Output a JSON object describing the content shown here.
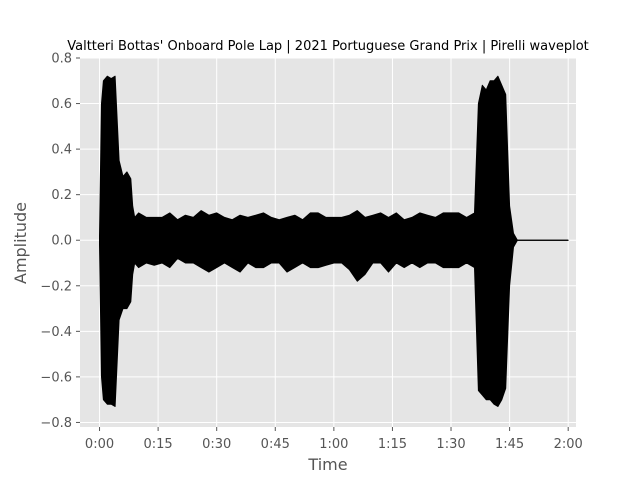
{
  "chart_data": {
    "type": "line",
    "title": "Valtteri Bottas' Onboard Pole Lap | 2021 Portuguese Grand Prix | Pirelli waveplot",
    "xlabel": "Time",
    "ylabel": "Amplitude",
    "xlim": [
      -5,
      122
    ],
    "ylim": [
      -0.82,
      0.8
    ],
    "x_ticks": [
      0,
      15,
      30,
      45,
      60,
      75,
      90,
      105,
      120
    ],
    "x_tick_labels": [
      "0:00",
      "0:15",
      "0:30",
      "0:45",
      "1:00",
      "1:15",
      "1:30",
      "1:45",
      "2:00"
    ],
    "y_ticks": [
      -0.8,
      -0.6,
      -0.4,
      -0.2,
      0.0,
      0.2,
      0.4,
      0.6,
      0.8
    ],
    "y_tick_labels": [
      "−0.8",
      "−0.6",
      "−0.4",
      "−0.2",
      "0.0",
      "0.2",
      "0.4",
      "0.6",
      "0.8"
    ],
    "grid": true,
    "style": "ggplot",
    "colors": {
      "waveform": "#000000",
      "axes_bg": "#e5e5e5",
      "grid": "#ffffff"
    },
    "series": [
      {
        "time_s": [
          0,
          0.5,
          1,
          2,
          3,
          4,
          5,
          6,
          7,
          8,
          8.5,
          9,
          10,
          12,
          14,
          16,
          18,
          20,
          22,
          24,
          26,
          28,
          30,
          32,
          34,
          36,
          38,
          40,
          42,
          44,
          46,
          48,
          50,
          52,
          54,
          56,
          58,
          60,
          62,
          64,
          66,
          68,
          70,
          72,
          74,
          76,
          78,
          80,
          82,
          84,
          86,
          88,
          90,
          92,
          94,
          96,
          97,
          98,
          99,
          100,
          101,
          102,
          103,
          104,
          105,
          106,
          107,
          120
        ],
        "envelope_max": [
          0.02,
          0.6,
          0.7,
          0.72,
          0.71,
          0.72,
          0.35,
          0.28,
          0.3,
          0.27,
          0.15,
          0.1,
          0.12,
          0.1,
          0.1,
          0.1,
          0.12,
          0.09,
          0.11,
          0.1,
          0.13,
          0.11,
          0.12,
          0.1,
          0.09,
          0.11,
          0.1,
          0.11,
          0.12,
          0.1,
          0.09,
          0.1,
          0.11,
          0.09,
          0.12,
          0.12,
          0.1,
          0.1,
          0.1,
          0.11,
          0.13,
          0.1,
          0.11,
          0.12,
          0.1,
          0.12,
          0.09,
          0.1,
          0.12,
          0.11,
          0.1,
          0.12,
          0.12,
          0.12,
          0.1,
          0.12,
          0.6,
          0.68,
          0.66,
          0.7,
          0.7,
          0.72,
          0.68,
          0.64,
          0.15,
          0.03,
          0.0,
          0.0
        ],
        "envelope_min": [
          -0.02,
          -0.6,
          -0.7,
          -0.72,
          -0.72,
          -0.73,
          -0.35,
          -0.3,
          -0.3,
          -0.27,
          -0.15,
          -0.1,
          -0.12,
          -0.1,
          -0.11,
          -0.1,
          -0.12,
          -0.08,
          -0.1,
          -0.1,
          -0.12,
          -0.14,
          -0.12,
          -0.1,
          -0.12,
          -0.14,
          -0.1,
          -0.12,
          -0.12,
          -0.1,
          -0.1,
          -0.14,
          -0.12,
          -0.1,
          -0.12,
          -0.12,
          -0.11,
          -0.1,
          -0.1,
          -0.13,
          -0.18,
          -0.15,
          -0.1,
          -0.1,
          -0.14,
          -0.1,
          -0.12,
          -0.1,
          -0.12,
          -0.1,
          -0.1,
          -0.12,
          -0.12,
          -0.12,
          -0.1,
          -0.12,
          -0.66,
          -0.68,
          -0.7,
          -0.7,
          -0.72,
          -0.73,
          -0.7,
          -0.65,
          -0.2,
          -0.03,
          0.0,
          0.0
        ]
      }
    ]
  }
}
